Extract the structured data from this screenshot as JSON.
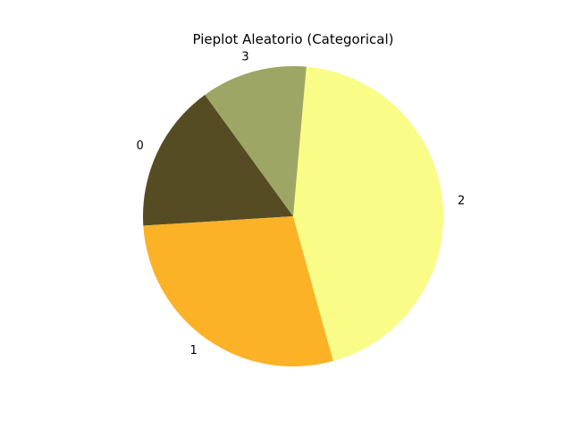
{
  "chart_data": {
    "type": "pie",
    "title": "Pieplot Aleatorio (Categorical)",
    "labels": [
      "0",
      "1",
      "2",
      "3"
    ],
    "values": [
      16.0,
      28.3,
      44.3,
      11.4
    ],
    "colors": [
      "#564c23",
      "#fbb226",
      "#f9fc86",
      "#9da664"
    ],
    "start_angle_deg": 126,
    "direction": "counterclockwise",
    "legend": "none"
  }
}
